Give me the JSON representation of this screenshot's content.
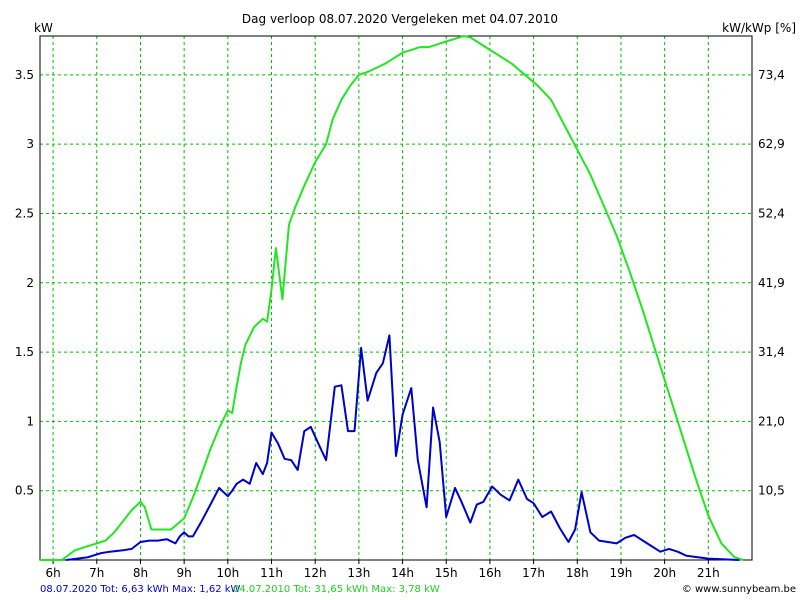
{
  "chart_data": {
    "type": "line",
    "title": "Dag  verloop 08.07.2020   Vergeleken met 04.07.2010",
    "ylabel_left": "kW",
    "ylabel_right": "kW/kWp [%]",
    "ylim": [
      0,
      3.78
    ],
    "xlim": [
      5.7,
      22.0
    ],
    "grid": true,
    "y_ticks_left": [
      "0.5",
      "1",
      "1.5",
      "2",
      "2.5",
      "3",
      "3.5"
    ],
    "y_tick_values_left": [
      0.5,
      1,
      1.5,
      2,
      2.5,
      3,
      3.5
    ],
    "y_ticks_right": [
      "10,5",
      "21,0",
      "31,4",
      "41,9",
      "52,4",
      "62,9",
      "73,4"
    ],
    "x_ticks": [
      "6h",
      "7h",
      "8h",
      "9h",
      "10h",
      "11h",
      "12h",
      "13h",
      "14h",
      "15h",
      "16h",
      "17h",
      "18h",
      "19h",
      "20h",
      "21h"
    ],
    "x_tick_values": [
      6,
      7,
      8,
      9,
      10,
      11,
      12,
      13,
      14,
      15,
      16,
      17,
      18,
      19,
      20,
      21
    ],
    "series": [
      {
        "name": "04.07.2010",
        "color": "#22e622",
        "x": [
          5.7,
          6.2,
          6.5,
          6.8,
          7.0,
          7.2,
          7.4,
          7.6,
          7.8,
          8.0,
          8.1,
          8.25,
          8.5,
          8.7,
          9.0,
          9.2,
          9.4,
          9.6,
          9.8,
          10.0,
          10.1,
          10.2,
          10.3,
          10.4,
          10.6,
          10.8,
          10.9,
          11.0,
          11.1,
          11.25,
          11.4,
          11.55,
          11.75,
          12.0,
          12.25,
          12.4,
          12.6,
          12.8,
          13.0,
          13.2,
          13.4,
          13.6,
          13.8,
          14.0,
          14.2,
          14.4,
          14.6,
          14.8,
          15.0,
          15.2,
          15.4,
          15.55,
          15.7,
          15.9,
          16.2,
          16.5,
          16.8,
          17.1,
          17.4,
          17.6,
          17.8,
          18.0,
          18.3,
          18.6,
          18.9,
          19.2,
          19.5,
          19.8,
          20.1,
          20.4,
          20.7,
          21.0,
          21.3,
          21.6,
          21.8
        ],
        "y": [
          0.0,
          0.0,
          0.07,
          0.1,
          0.12,
          0.14,
          0.2,
          0.28,
          0.36,
          0.42,
          0.38,
          0.22,
          0.22,
          0.22,
          0.3,
          0.45,
          0.62,
          0.8,
          0.95,
          1.08,
          1.06,
          1.25,
          1.42,
          1.55,
          1.68,
          1.74,
          1.72,
          1.95,
          2.25,
          1.88,
          2.42,
          2.55,
          2.7,
          2.87,
          3.0,
          3.18,
          3.32,
          3.42,
          3.5,
          3.52,
          3.55,
          3.58,
          3.62,
          3.66,
          3.68,
          3.7,
          3.7,
          3.72,
          3.74,
          3.76,
          3.78,
          3.77,
          3.74,
          3.7,
          3.64,
          3.58,
          3.5,
          3.42,
          3.32,
          3.2,
          3.08,
          2.96,
          2.78,
          2.56,
          2.34,
          2.08,
          1.8,
          1.5,
          1.2,
          0.9,
          0.6,
          0.32,
          0.12,
          0.02,
          0.0
        ]
      },
      {
        "name": "08.07.2020",
        "color": "#0000cc",
        "x": [
          6.3,
          6.8,
          7.1,
          7.3,
          7.6,
          7.8,
          8.0,
          8.2,
          8.4,
          8.6,
          8.8,
          8.9,
          9.0,
          9.1,
          9.2,
          9.4,
          9.6,
          9.8,
          10.0,
          10.1,
          10.2,
          10.35,
          10.5,
          10.65,
          10.8,
          10.9,
          11.0,
          11.15,
          11.3,
          11.45,
          11.6,
          11.75,
          11.9,
          12.1,
          12.25,
          12.45,
          12.6,
          12.75,
          12.9,
          13.05,
          13.2,
          13.4,
          13.55,
          13.7,
          13.85,
          14.0,
          14.2,
          14.35,
          14.55,
          14.7,
          14.85,
          15.0,
          15.2,
          15.35,
          15.55,
          15.7,
          15.85,
          16.05,
          16.25,
          16.45,
          16.65,
          16.85,
          17.0,
          17.2,
          17.4,
          17.6,
          17.8,
          17.95,
          18.1,
          18.3,
          18.5,
          18.7,
          18.9,
          19.1,
          19.3,
          19.6,
          19.9,
          20.1,
          20.3,
          20.5,
          21.0,
          21.7
        ],
        "y": [
          0.0,
          0.02,
          0.05,
          0.06,
          0.07,
          0.08,
          0.13,
          0.14,
          0.14,
          0.15,
          0.12,
          0.17,
          0.2,
          0.17,
          0.17,
          0.28,
          0.4,
          0.52,
          0.46,
          0.5,
          0.55,
          0.58,
          0.55,
          0.7,
          0.62,
          0.7,
          0.92,
          0.84,
          0.73,
          0.72,
          0.65,
          0.93,
          0.96,
          0.82,
          0.72,
          1.25,
          1.26,
          0.93,
          0.93,
          1.53,
          1.15,
          1.35,
          1.42,
          1.62,
          0.75,
          1.05,
          1.24,
          0.72,
          0.38,
          1.1,
          0.85,
          0.31,
          0.52,
          0.42,
          0.27,
          0.4,
          0.42,
          0.53,
          0.47,
          0.43,
          0.58,
          0.44,
          0.41,
          0.31,
          0.35,
          0.23,
          0.13,
          0.22,
          0.49,
          0.2,
          0.14,
          0.13,
          0.12,
          0.16,
          0.18,
          0.12,
          0.06,
          0.08,
          0.06,
          0.03,
          0.01,
          0.0
        ]
      }
    ],
    "footer": {
      "today": "08.07.2020 Tot: 6,63 kWh Max: 1,62 kW",
      "compare": "04.07.2010 Tot: 31,65 kWh Max: 3,78 kW",
      "source": "© www.sunnybeam.be"
    }
  }
}
